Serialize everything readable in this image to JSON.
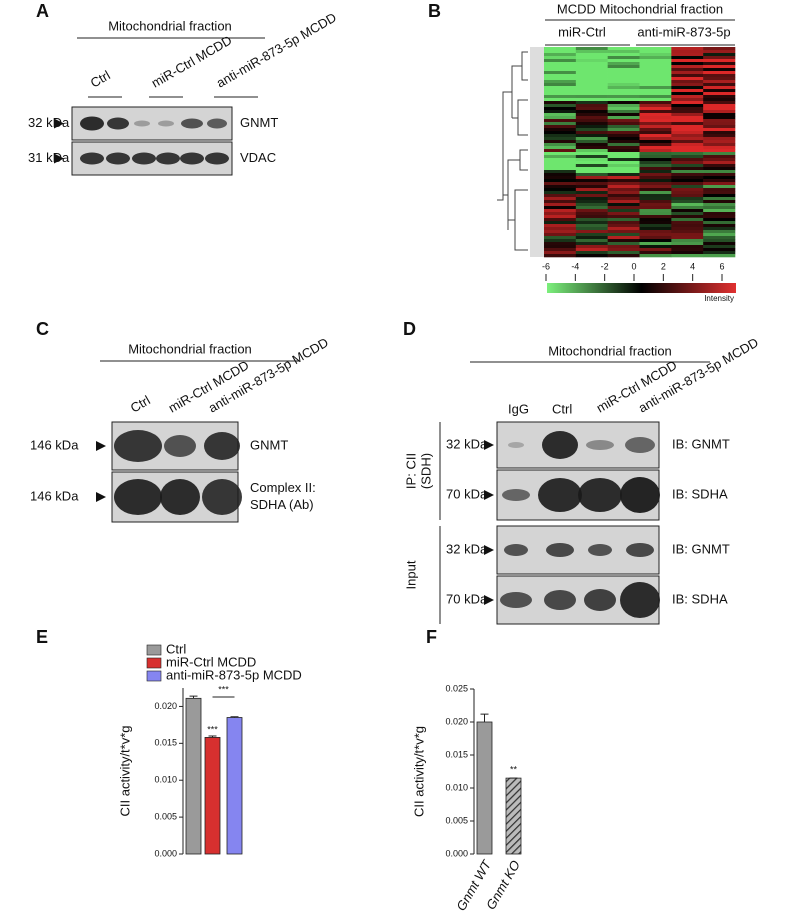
{
  "panel_a": {
    "letter": "A",
    "header": "Mitochondrial fraction",
    "lanes": [
      "Ctrl",
      "miR-Ctrl MCDD",
      "anti-miR-873-5p MCDD"
    ],
    "rows": [
      {
        "size": "32 kDa",
        "label": [
          "GNMT"
        ]
      },
      {
        "size": "31 kDa",
        "label": [
          "VDAC"
        ]
      }
    ]
  },
  "panel_b": {
    "letter": "B",
    "header": "MCDD Mitochondrial fraction",
    "groups": [
      "miR-Ctrl",
      "anti-miR-873-5p"
    ],
    "scale_ticks": [
      -6,
      -4,
      -2,
      0,
      2,
      4,
      6
    ],
    "scale_label": "Intensity"
  },
  "panel_c": {
    "letter": "C",
    "header": "Mitochondrial fraction",
    "lanes": [
      "Ctrl",
      "miR-Ctrl MCDD",
      "anti-miR-873-5p MCDD"
    ],
    "rows": [
      {
        "size": "146 kDa",
        "label": [
          "GNMT"
        ]
      },
      {
        "size": "146 kDa",
        "label": [
          "Complex II:",
          "SDHA (Ab)"
        ]
      }
    ]
  },
  "panel_d": {
    "letter": "D",
    "header": "Mitochondrial fraction",
    "lanes": [
      "IgG",
      "Ctrl",
      "miR-Ctrl MCDD",
      "anti-miR-873-5p MCDD"
    ],
    "sections": [
      {
        "name": [
          "IP: CII",
          "(SDH)"
        ],
        "rows": [
          {
            "size": "32 kDa",
            "label": "IB: GNMT"
          },
          {
            "size": "70 kDa",
            "label": "IB: SDHA"
          }
        ]
      },
      {
        "name": [
          "Input"
        ],
        "rows": [
          {
            "size": "32 kDa",
            "label": "IB: GNMT"
          },
          {
            "size": "70 kDa",
            "label": "IB: SDHA"
          }
        ]
      }
    ]
  },
  "chart_data": [
    {
      "type": "bar",
      "letter": "E",
      "ylabel": "CII activity/t*v*g",
      "series": [
        {
          "name": "Ctrl",
          "color": "#9a9a9a",
          "values": [
            0.0211
          ],
          "errors": [
            0.0003
          ]
        },
        {
          "name": "miR-Ctrl MCDD",
          "color": "#d7302f",
          "values": [
            0.0158
          ],
          "errors": [
            0.0002
          ]
        },
        {
          "name": "anti-miR-873-5p MCDD",
          "color": "#8585f0",
          "values": [
            0.0185
          ],
          "errors": [
            0.0001
          ]
        }
      ],
      "ylim": [
        0,
        0.0225
      ],
      "yticks": [
        {
          "value": 0,
          "label": "0.000"
        },
        {
          "value": 0.005,
          "label": "0.005"
        },
        {
          "value": 0.01,
          "label": "0.010"
        },
        {
          "value": 0.015,
          "label": "0.015"
        },
        {
          "value": 0.02,
          "label": "0.020"
        }
      ],
      "annotations": [
        "***",
        "***"
      ]
    },
    {
      "type": "bar",
      "letter": "F",
      "ylabel": "CII activity/t*v*g",
      "categories": [
        "Gnmt WT",
        "Gnmt KO"
      ],
      "values": [
        0.02,
        0.0115
      ],
      "errors": [
        0.0012,
        0
      ],
      "colors": [
        "#9a9a9a",
        "#555555"
      ],
      "hatch": [
        false,
        true
      ],
      "ylim": [
        0,
        0.025
      ],
      "yticks": [
        {
          "value": 0,
          "label": "0.000"
        },
        {
          "value": 0.005,
          "label": "0.005"
        },
        {
          "value": 0.01,
          "label": "0.010"
        },
        {
          "value": 0.015,
          "label": "0.015"
        },
        {
          "value": 0.02,
          "label": "0.020"
        },
        {
          "value": 0.025,
          "label": "0.025"
        }
      ],
      "annotations": [
        "**"
      ]
    }
  ]
}
